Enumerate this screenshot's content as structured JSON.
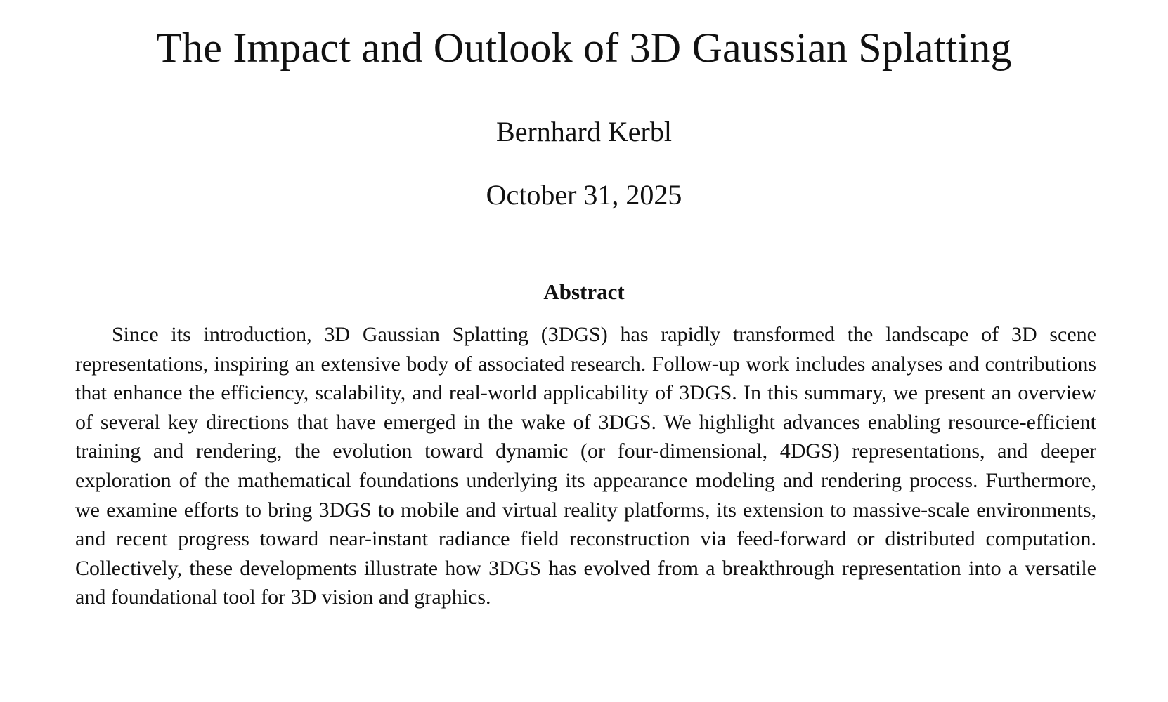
{
  "paper": {
    "title": "The Impact and Outlook of 3D Gaussian Splatting",
    "author": "Bernhard Kerbl",
    "date": "October 31, 2025",
    "abstract_heading": "Abstract",
    "abstract_text": "Since its introduction, 3D Gaussian Splatting (3DGS) has rapidly transformed the land­scape of 3D scene representations, inspiring an extensive body of associated research. Follow-up work includes analyses and contributions that enhance the efficiency, scalability, and real-world applicability of 3DGS. In this summary, we present an overview of several key directions that have emerged in the wake of 3DGS. We highlight advances enabling resource-efficient training and rendering, the evolution toward dynamic (or four-dimensional, 4DGS) representations, and deeper exploration of the mathematical foundations underlying its appearance modeling and rendering process. Furthermore, we examine efforts to bring 3DGS to mobile and virtual reality platforms, its extension to massive-scale environments, and recent progress toward near-instant radiance field reconstruction via feed-forward or distributed computation. Collectively, these de­velopments illustrate how 3DGS has evolved from a breakthrough representation into a versatile and foundational tool for 3D vision and graphics."
  }
}
